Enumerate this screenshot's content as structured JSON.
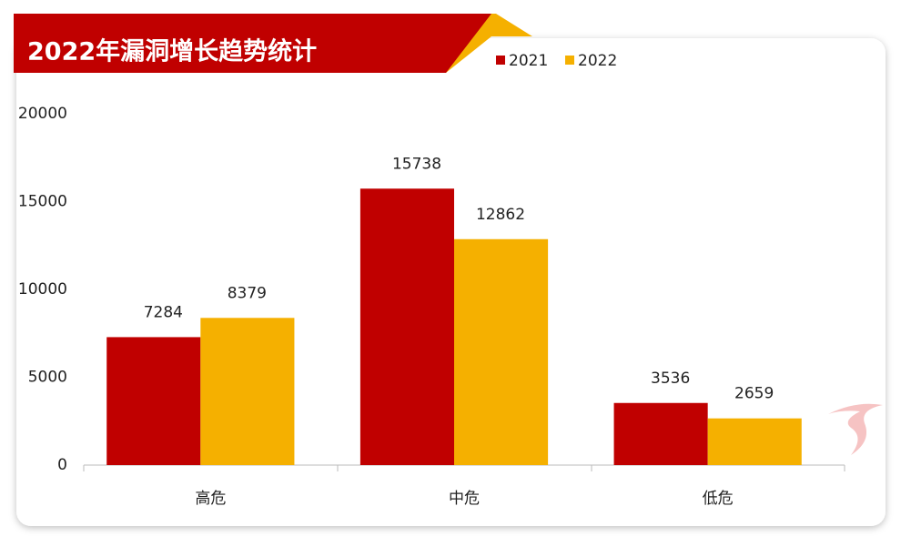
{
  "chart_data": {
    "type": "bar",
    "title": "2022年漏洞增长趋势统计",
    "categories": [
      "高危",
      "中危",
      "低危"
    ],
    "series": [
      {
        "name": "2021",
        "color": "#c00000",
        "values": [
          7284,
          15738,
          3536
        ]
      },
      {
        "name": "2022",
        "color": "#f5b000",
        "values": [
          8379,
          12862,
          2659
        ]
      }
    ],
    "ylim": [
      0,
      20000
    ],
    "yticks": [
      0,
      5000,
      10000,
      15000,
      20000
    ],
    "grid": false
  }
}
